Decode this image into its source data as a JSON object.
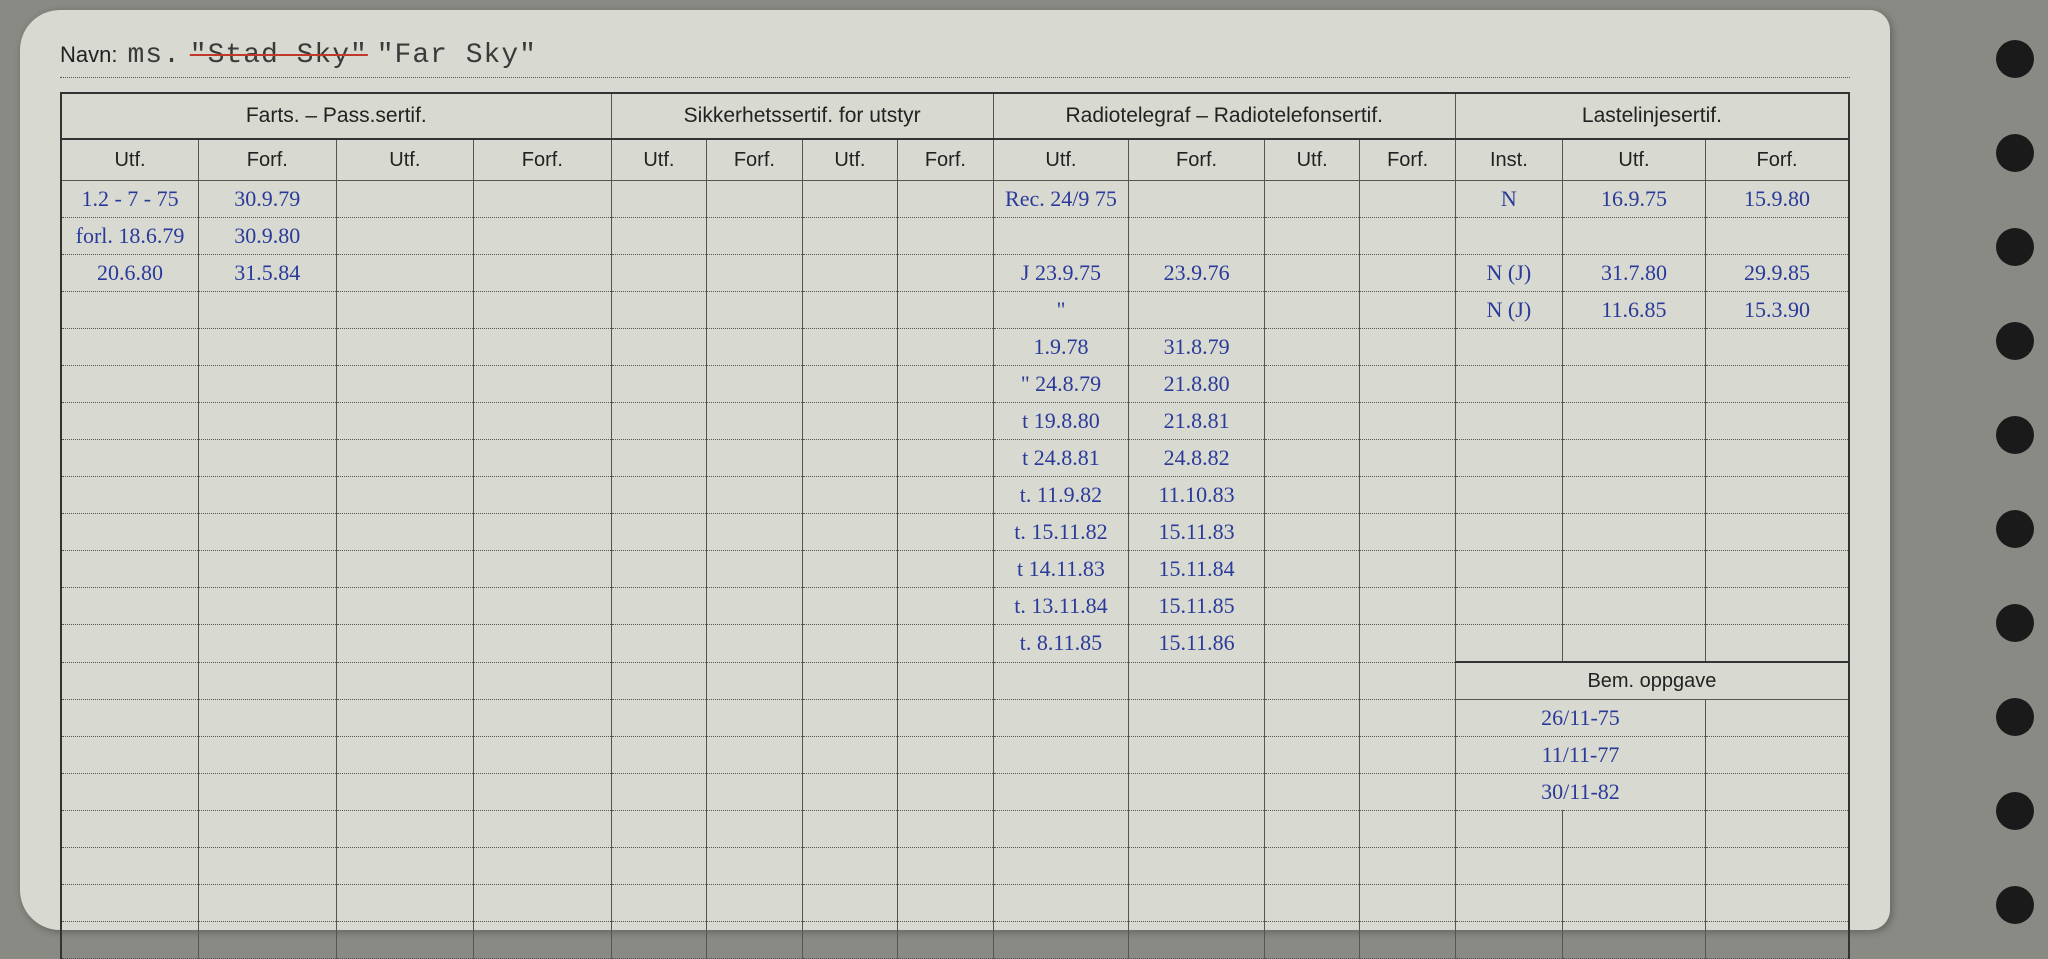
{
  "navn": {
    "label": "Navn:",
    "prefix": "ms.",
    "struck": "\"Stad Sky\"",
    "name": "\"Far Sky\""
  },
  "sections": {
    "farts": {
      "title": "Farts. – Pass.sertif.",
      "cols": [
        "Utf.",
        "Forf.",
        "Utf.",
        "Forf."
      ]
    },
    "sikker": {
      "title": "Sikkerhetssertif. for utstyr",
      "cols": [
        "Utf.",
        "Forf.",
        "Utf.",
        "Forf."
      ]
    },
    "radio": {
      "title": "Radiotelegraf – Radiotelefonsertif.",
      "cols": [
        "Utf.",
        "Forf.",
        "Utf.",
        "Forf."
      ]
    },
    "laste": {
      "title": "Lastelinjesertif.",
      "cols": [
        "Inst.",
        "Utf.",
        "Forf."
      ]
    }
  },
  "rows": [
    {
      "farts": [
        "1.2 - 7 - 75",
        "30.9.79",
        "",
        ""
      ],
      "sikker": [
        "",
        "",
        "",
        ""
      ],
      "radio": [
        "Rec. 24/9 75",
        "",
        "",
        ""
      ],
      "laste": [
        "N",
        "16.9.75",
        "15.9.80"
      ]
    },
    {
      "farts": [
        "forl. 18.6.79",
        "30.9.80",
        "",
        ""
      ],
      "sikker": [
        "",
        "",
        "",
        ""
      ],
      "radio": [
        "",
        "",
        "",
        ""
      ],
      "laste": [
        "",
        "",
        ""
      ]
    },
    {
      "farts": [
        "20.6.80",
        "31.5.84",
        "",
        ""
      ],
      "sikker": [
        "",
        "",
        "",
        ""
      ],
      "radio": [
        "J 23.9.75",
        "23.9.76",
        "",
        ""
      ],
      "laste": [
        "N (J)",
        "31.7.80",
        "29.9.85"
      ]
    },
    {
      "farts": [
        "",
        "",
        "",
        ""
      ],
      "sikker": [
        "",
        "",
        "",
        ""
      ],
      "radio": [
        "\"",
        "",
        "",
        ""
      ],
      "laste": [
        "N (J)",
        "11.6.85",
        "15.3.90"
      ]
    },
    {
      "farts": [
        "",
        "",
        "",
        ""
      ],
      "sikker": [
        "",
        "",
        "",
        ""
      ],
      "radio": [
        "1.9.78",
        "31.8.79",
        "",
        ""
      ],
      "laste": [
        "",
        "",
        ""
      ]
    },
    {
      "farts": [
        "",
        "",
        "",
        ""
      ],
      "sikker": [
        "",
        "",
        "",
        ""
      ],
      "radio": [
        "\" 24.8.79",
        "21.8.80",
        "",
        ""
      ],
      "laste": [
        "",
        "",
        ""
      ]
    },
    {
      "farts": [
        "",
        "",
        "",
        ""
      ],
      "sikker": [
        "",
        "",
        "",
        ""
      ],
      "radio": [
        "t 19.8.80",
        "21.8.81",
        "",
        ""
      ],
      "laste": [
        "",
        "",
        ""
      ]
    },
    {
      "farts": [
        "",
        "",
        "",
        ""
      ],
      "sikker": [
        "",
        "",
        "",
        ""
      ],
      "radio": [
        "t 24.8.81",
        "24.8.82",
        "",
        ""
      ],
      "laste": [
        "",
        "",
        ""
      ]
    },
    {
      "farts": [
        "",
        "",
        "",
        ""
      ],
      "sikker": [
        "",
        "",
        "",
        ""
      ],
      "radio": [
        "t. 11.9.82",
        "11.10.83",
        "",
        ""
      ],
      "laste": [
        "",
        "",
        ""
      ]
    },
    {
      "farts": [
        "",
        "",
        "",
        ""
      ],
      "sikker": [
        "",
        "",
        "",
        ""
      ],
      "radio": [
        "t. 15.11.82",
        "15.11.83",
        "",
        ""
      ],
      "laste": [
        "",
        "",
        ""
      ]
    },
    {
      "farts": [
        "",
        "",
        "",
        ""
      ],
      "sikker": [
        "",
        "",
        "",
        ""
      ],
      "radio": [
        "t 14.11.83",
        "15.11.84",
        "",
        ""
      ],
      "laste": [
        "",
        "",
        ""
      ]
    },
    {
      "farts": [
        "",
        "",
        "",
        ""
      ],
      "sikker": [
        "",
        "",
        "",
        ""
      ],
      "radio": [
        "t. 13.11.84",
        "15.11.85",
        "",
        ""
      ],
      "laste": [
        "",
        "",
        ""
      ]
    },
    {
      "farts": [
        "",
        "",
        "",
        ""
      ],
      "sikker": [
        "",
        "",
        "",
        ""
      ],
      "radio": [
        "t. 8.11.85",
        "15.11.86",
        "",
        ""
      ],
      "laste": [
        "",
        "",
        ""
      ]
    }
  ],
  "bem": {
    "title": "Bem. oppgave",
    "entries": [
      "26/11-75",
      "11/11-77",
      "30/11-82"
    ]
  },
  "blank_rows_after_bem": 4,
  "blank_rows_main_extra": 7,
  "colors": {
    "card": "#d8d9d0",
    "ink": "#2a3a9a",
    "print": "#222",
    "bg": "#8a8a85"
  }
}
